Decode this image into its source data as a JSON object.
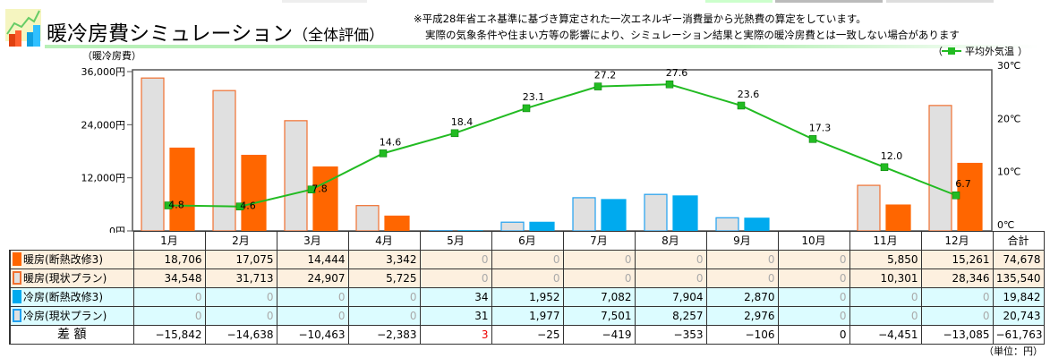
{
  "header": {
    "title": "暖冷房費シミュレーション",
    "subtitle": "（全体評価）",
    "note1": "※平成28年省エネ基準に基づき算定された一次エネルギー消費量から光熱費の算定をしています。",
    "note2": "実際の気象条件や住まい方等の影響により、シミュレーション結果と実際の暖冷房費とは一致しない場合があります"
  },
  "chart_data": {
    "type": "bar",
    "categories": [
      "1月",
      "2月",
      "3月",
      "4月",
      "5月",
      "6月",
      "7月",
      "8月",
      "9月",
      "10月",
      "11月",
      "12月"
    ],
    "ylabel": "（暖冷房費）",
    "y2label": "平均外気温",
    "legend_open": "（",
    "legend_close": "）",
    "yticks": [
      "0円",
      "12,000円",
      "24,000円",
      "36,000円"
    ],
    "ylim": [
      0,
      36000
    ],
    "y2ticks": [
      "0℃",
      "10℃",
      "20℃",
      "30℃"
    ],
    "y2lim": [
      0,
      30
    ],
    "series": [
      {
        "name": "暖房(現状プラン)",
        "color": "#e0e0e0",
        "edge": "#f07030",
        "values": [
          34548,
          31713,
          24907,
          5725,
          0,
          0,
          0,
          0,
          0,
          0,
          10301,
          28346
        ]
      },
      {
        "name": "暖房(断熱改修3)",
        "color": "#ff6600",
        "edge": "#ff6600",
        "values": [
          18706,
          17075,
          14444,
          3342,
          0,
          0,
          0,
          0,
          0,
          0,
          5850,
          15261
        ]
      },
      {
        "name": "冷房(現状プラン)",
        "color": "#e0e0e0",
        "edge": "#20a0f0",
        "values": [
          0,
          0,
          0,
          0,
          31,
          1977,
          7501,
          8257,
          2976,
          0,
          0,
          0
        ]
      },
      {
        "name": "冷房(断熱改修3)",
        "color": "#00aaee",
        "edge": "#00aaee",
        "values": [
          0,
          0,
          0,
          0,
          34,
          1952,
          7082,
          7904,
          2870,
          0,
          0,
          0
        ]
      }
    ],
    "temperature": {
      "name": "平均外気温",
      "color": "#22bb22",
      "values": [
        4.8,
        4.6,
        7.8,
        14.6,
        18.4,
        23.1,
        27.2,
        27.6,
        23.6,
        17.3,
        12.0,
        6.7
      ],
      "labels": [
        "4.8",
        "4.6",
        "7.8",
        "14.6",
        "18.4",
        "23.1",
        "27.2",
        "27.6",
        "23.6",
        "17.3",
        "12.0",
        "6.7"
      ]
    }
  },
  "table": {
    "headers": [
      "1月",
      "2月",
      "3月",
      "4月",
      "5月",
      "6月",
      "7月",
      "8月",
      "9月",
      "10月",
      "11月",
      "12月",
      "合計"
    ],
    "rows": [
      {
        "label": "暖房(断熱改修3)",
        "cls": "heat",
        "sw": "#ff6600",
        "swb": "#ff6600",
        "cells": [
          "18,706",
          "17,075",
          "14,444",
          "3,342",
          "0",
          "0",
          "0",
          "0",
          "0",
          "0",
          "5,850",
          "15,261",
          "74,678"
        ]
      },
      {
        "label": "暖房(現状プラン)",
        "cls": "heat",
        "sw": "#e0e0e0",
        "swb": "#f07030",
        "cells": [
          "34,548",
          "31,713",
          "24,907",
          "5,725",
          "0",
          "0",
          "0",
          "0",
          "0",
          "0",
          "10,301",
          "28,346",
          "135,540"
        ]
      },
      {
        "label": "冷房(断熱改修3)",
        "cls": "cool",
        "sw": "#00aaee",
        "swb": "#00aaee",
        "cells": [
          "0",
          "0",
          "0",
          "0",
          "34",
          "1,952",
          "7,082",
          "7,904",
          "2,870",
          "0",
          "0",
          "0",
          "19,842"
        ]
      },
      {
        "label": "冷房(現状プラン)",
        "cls": "cool",
        "sw": "#e0e0e0",
        "swb": "#20a0f0",
        "cells": [
          "0",
          "0",
          "0",
          "0",
          "31",
          "1,977",
          "7,501",
          "8,257",
          "2,976",
          "0",
          "0",
          "0",
          "20,743"
        ]
      },
      {
        "label": "差 額",
        "cls": "diff",
        "cells": [
          "−15,842",
          "−14,638",
          "−10,463",
          "−2,383",
          "3",
          "−25",
          "−419",
          "−353",
          "−106",
          "0",
          "−4,451",
          "−13,085",
          "−61,763"
        ]
      }
    ],
    "unit": "（単位：円）"
  }
}
